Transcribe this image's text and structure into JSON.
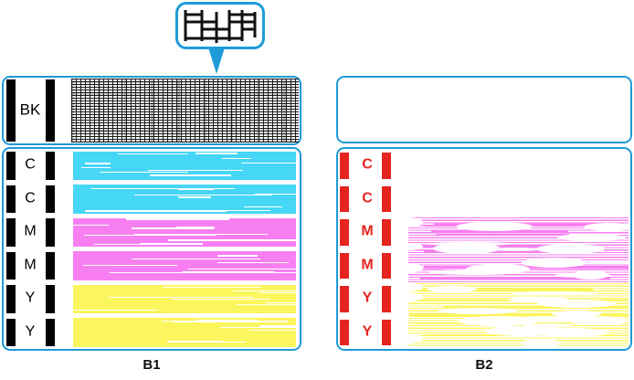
{
  "figure": {
    "callout_icon": "magnified-nozzle-grid",
    "b1": {
      "caption": "B1",
      "bk_label": "BK",
      "rows": [
        {
          "label": "C",
          "ink": "cyan",
          "printed": true
        },
        {
          "label": "C",
          "ink": "cyan",
          "printed": true
        },
        {
          "label": "M",
          "ink": "magenta",
          "printed": true
        },
        {
          "label": "M",
          "ink": "magenta",
          "printed": true
        },
        {
          "label": "Y",
          "ink": "yellow",
          "printed": true
        },
        {
          "label": "Y",
          "ink": "yellow",
          "printed": true
        }
      ]
    },
    "b2": {
      "caption": "B2",
      "rows": [
        {
          "label": "C",
          "ink": "cyan",
          "printed": false
        },
        {
          "label": "C",
          "ink": "cyan",
          "printed": false
        },
        {
          "label": "M",
          "ink": "magenta",
          "printed": true
        },
        {
          "label": "M",
          "ink": "magenta",
          "printed": true
        },
        {
          "label": "Y",
          "ink": "yellow",
          "printed": true
        },
        {
          "label": "Y",
          "ink": "yellow",
          "printed": true
        }
      ]
    },
    "colors": {
      "panel_border_blue": "#1e9bd7",
      "marker_red": "#e52420",
      "ink_black": "#000000",
      "cyan": "#46d6f6",
      "magenta": "#f87ff2",
      "yellow": "#fbf55e"
    }
  }
}
